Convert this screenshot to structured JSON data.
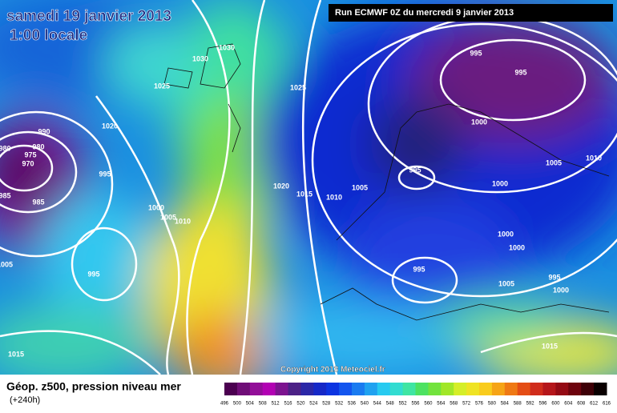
{
  "header": {
    "title": "samedi 19 janvier 2013",
    "time": "1:00 locale",
    "run": "Run ECMWF 0Z du mercredi 9 janvier 2013"
  },
  "copyright": "Copyright 2013 Meteociel.fr",
  "legend": {
    "title": "Géop. z500, pression niveau mer",
    "subtitle": "(+240h)",
    "scale": [
      496,
      500,
      504,
      508,
      512,
      516,
      520,
      524,
      528,
      532,
      536,
      540,
      544,
      548,
      552,
      556,
      560,
      564,
      568,
      572,
      576,
      580,
      584,
      588,
      592,
      596,
      600,
      604,
      608,
      612,
      616
    ]
  },
  "isobar_labels": [
    "1030",
    "1030",
    "1025",
    "1025",
    "1020",
    "990",
    "980",
    "980",
    "975",
    "970",
    "985",
    "985",
    "995",
    "1000",
    "1005",
    "1010",
    "1020",
    "1015",
    "1010",
    "1005",
    "995",
    "1005",
    "1015",
    "995",
    "995",
    "1000",
    "995",
    "1000",
    "1005",
    "1010",
    "1000",
    "1000",
    "995",
    "1005",
    "995",
    "1000",
    "1015"
  ]
}
